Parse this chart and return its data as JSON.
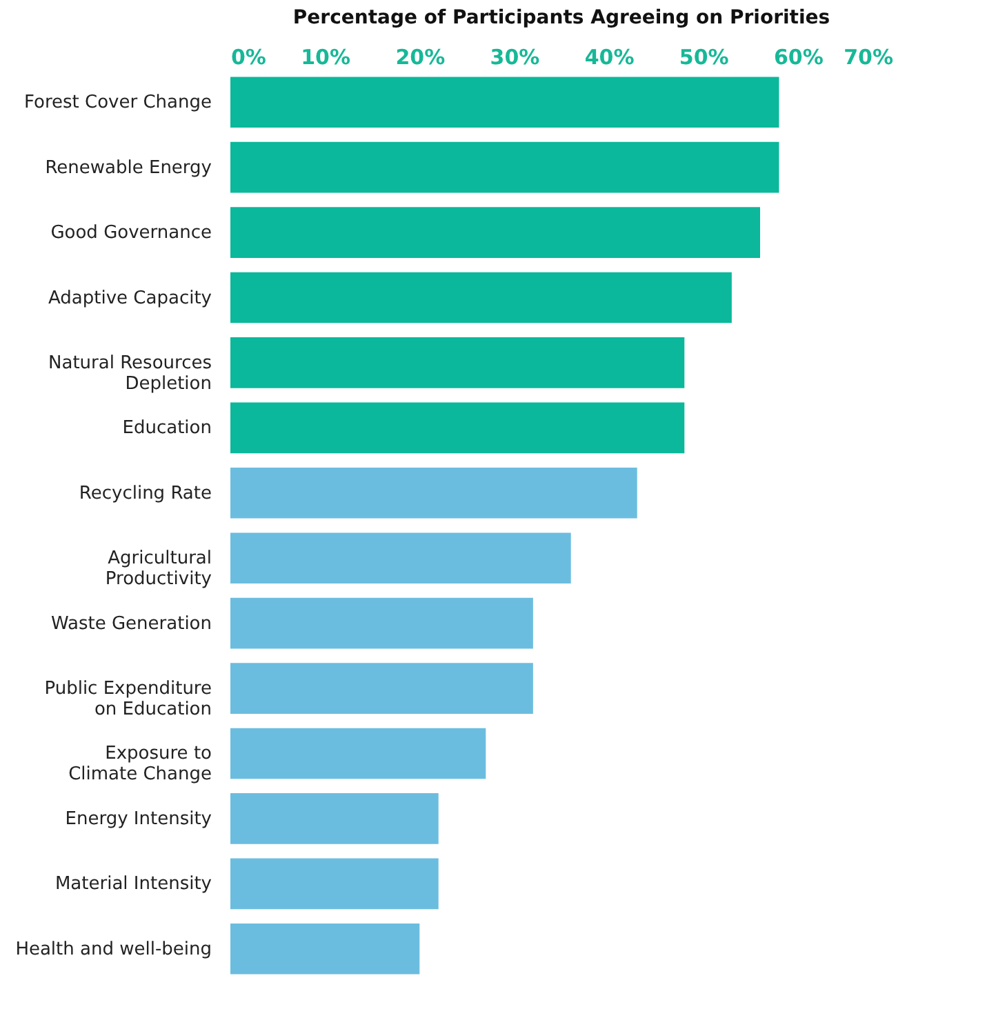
{
  "chart_data": {
    "type": "bar",
    "orientation": "horizontal",
    "title": "Percentage of Participants Agreeing on Priorities",
    "categories": [
      "Forest Cover Change",
      "Renewable Energy",
      "Good Governance",
      "Adaptive Capacity",
      "Natural Resources\nDepletion",
      "Education",
      "Recycling Rate",
      "Agricultural\nProductivity",
      "Waste Generation",
      "Public Expenditure\non Education",
      "Exposure to\nClimate Change",
      "Energy Intensity",
      "Material Intensity",
      "Health and well-being"
    ],
    "values": [
      58,
      58,
      56,
      53,
      48,
      48,
      43,
      36,
      32,
      32,
      27,
      22,
      22,
      20
    ],
    "colors": [
      "#0bb89b",
      "#0bb89b",
      "#0bb89b",
      "#0bb89b",
      "#0bb89b",
      "#0bb89b",
      "#6bbddf",
      "#6bbddf",
      "#6bbddf",
      "#6bbddf",
      "#6bbddf",
      "#6bbddf",
      "#6bbddf",
      "#6bbddf"
    ],
    "xlim": [
      0,
      70
    ],
    "xticks": [
      {
        "value": 0,
        "label": "0%"
      },
      {
        "value": 10,
        "label": "10%"
      },
      {
        "value": 20,
        "label": "20%"
      },
      {
        "value": 30,
        "label": "30%"
      },
      {
        "value": 40,
        "label": "40%"
      },
      {
        "value": 50,
        "label": "50%"
      },
      {
        "value": 60,
        "label": "60%"
      },
      {
        "value": 70,
        "label": "70%"
      }
    ],
    "tick_labels": true
  }
}
